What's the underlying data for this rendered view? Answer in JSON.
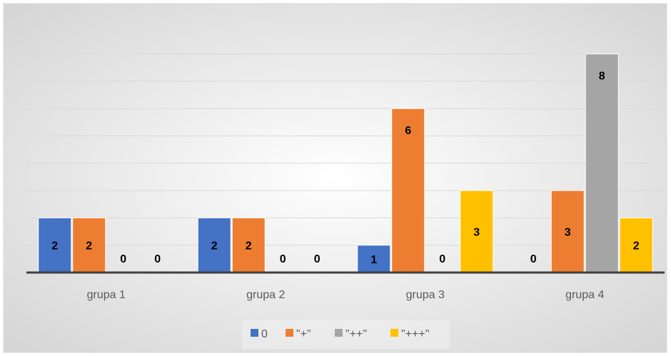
{
  "chart_data": {
    "type": "bar",
    "title": "",
    "xlabel": "",
    "ylabel": "",
    "categories": [
      "grupa 1",
      "grupa 2",
      "grupa 3",
      "grupa 4"
    ],
    "ylim": [
      0,
      8
    ],
    "grid": true,
    "legend_position": "bottom",
    "series": [
      {
        "name": "0",
        "color": "#4472C4",
        "values": [
          2,
          2,
          1,
          0
        ]
      },
      {
        "name": "\"+\"",
        "color": "#ED7D31",
        "values": [
          2,
          2,
          6,
          3
        ]
      },
      {
        "name": "\"++\"",
        "color": "#A5A5A5",
        "values": [
          0,
          0,
          0,
          8
        ]
      },
      {
        "name": "\"+++\"",
        "color": "#FFC000",
        "values": [
          0,
          0,
          3,
          2
        ]
      }
    ]
  }
}
